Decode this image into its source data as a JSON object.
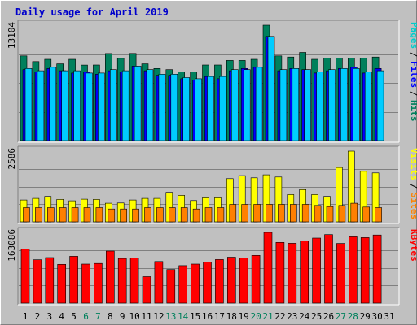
{
  "chart_data": {
    "type": "bar",
    "title": "Daily usage for April 2019",
    "grid": true,
    "legend": "right-side vertical labels",
    "days": [
      "1",
      "2",
      "3",
      "4",
      "5",
      "6",
      "7",
      "8",
      "9",
      "10",
      "11",
      "12",
      "13",
      "14",
      "15",
      "16",
      "17",
      "18",
      "19",
      "20",
      "21",
      "22",
      "23",
      "24",
      "25",
      "26",
      "27",
      "28",
      "29",
      "30",
      "31"
    ],
    "weekend_days": [
      "6",
      "7",
      "13",
      "14",
      "20",
      "21",
      "27",
      "28"
    ],
    "panels": [
      {
        "id": "pages-files-hits",
        "ymax_label": "13104",
        "ylim": [
          0,
          13104
        ],
        "legend_labels": [
          "Pages",
          "Files",
          "Hits"
        ],
        "legend_colors": [
          "#00cccc",
          "#0000ff",
          "#00805c"
        ],
        "series": [
          {
            "name": "Hits",
            "color": "#00805c",
            "values": [
              9620,
              8970,
              9230,
              8710,
              9230,
              8570,
              8580,
              9880,
              9340,
              9890,
              8710,
              8190,
              8060,
              7800,
              7800,
              8580,
              8580,
              9100,
              9100,
              9230,
              13104,
              9620,
              9490,
              10010,
              9230,
              9360,
              9360,
              9360,
              9360,
              9490
            ]
          },
          {
            "name": "Files",
            "color": "#0000ff",
            "values": [
              8060,
              7800,
              8190,
              7930,
              7670,
              7800,
              7540,
              7930,
              7800,
              8450,
              7930,
              7410,
              7410,
              7020,
              6890,
              7280,
              7020,
              7930,
              8190,
              8320,
              11830,
              7930,
              8190,
              8060,
              7670,
              7930,
              8190,
              8320,
              7670,
              8190
            ]
          },
          {
            "name": "Pages",
            "color": "#00ccff",
            "values": [
              8190,
              7930,
              8320,
              7930,
              7930,
              7670,
              7670,
              8060,
              7930,
              8450,
              8060,
              7540,
              7540,
              7150,
              7020,
              7280,
              7280,
              8060,
              8060,
              8320,
              11830,
              8060,
              8190,
              8060,
              7800,
              8060,
              8190,
              8190,
              7800,
              7930
            ]
          }
        ]
      },
      {
        "id": "visits-sites",
        "ymax_label": "2586",
        "ylim": [
          0,
          2586
        ],
        "legend_labels": [
          "Visits",
          "Sites"
        ],
        "legend_colors": [
          "#ffff00",
          "#ff8000"
        ],
        "series": [
          {
            "name": "Visits",
            "color": "#ffff00",
            "values": [
              800,
              860,
              930,
              820,
              770,
              830,
              820,
              680,
              690,
              800,
              860,
              860,
              1080,
              970,
              780,
              880,
              880,
              1580,
              1690,
              1610,
              1720,
              1640,
              1000,
              1180,
              1000,
              930,
              1990,
              2586,
              1850,
              1790
            ]
          },
          {
            "name": "Sites",
            "color": "#ff8000",
            "values": [
              520,
              520,
              520,
              520,
              520,
              520,
              520,
              470,
              470,
              470,
              520,
              520,
              520,
              520,
              470,
              520,
              520,
              640,
              640,
              640,
              640,
              640,
              640,
              640,
              600,
              560,
              600,
              680,
              540,
              520
            ]
          }
        ]
      },
      {
        "id": "kbytes",
        "ymax_label": "163086",
        "ylim": [
          0,
          163086
        ],
        "legend_labels": [
          "KBytes"
        ],
        "legend_colors": [
          "#ff0000"
        ],
        "series": [
          {
            "name": "KBytes",
            "color": "#ff0000",
            "values": [
              125000,
              100000,
              105000,
              89500,
              108000,
              90000,
              91500,
              120000,
              103000,
              104000,
              61000,
              96000,
              77500,
              86500,
              90000,
              94500,
              100500,
              106000,
              104000,
              110000,
              163086,
              140000,
              138000,
              143500,
              150000,
              158000,
              137500,
              153000,
              151000,
              157000
            ]
          }
        ]
      }
    ]
  }
}
